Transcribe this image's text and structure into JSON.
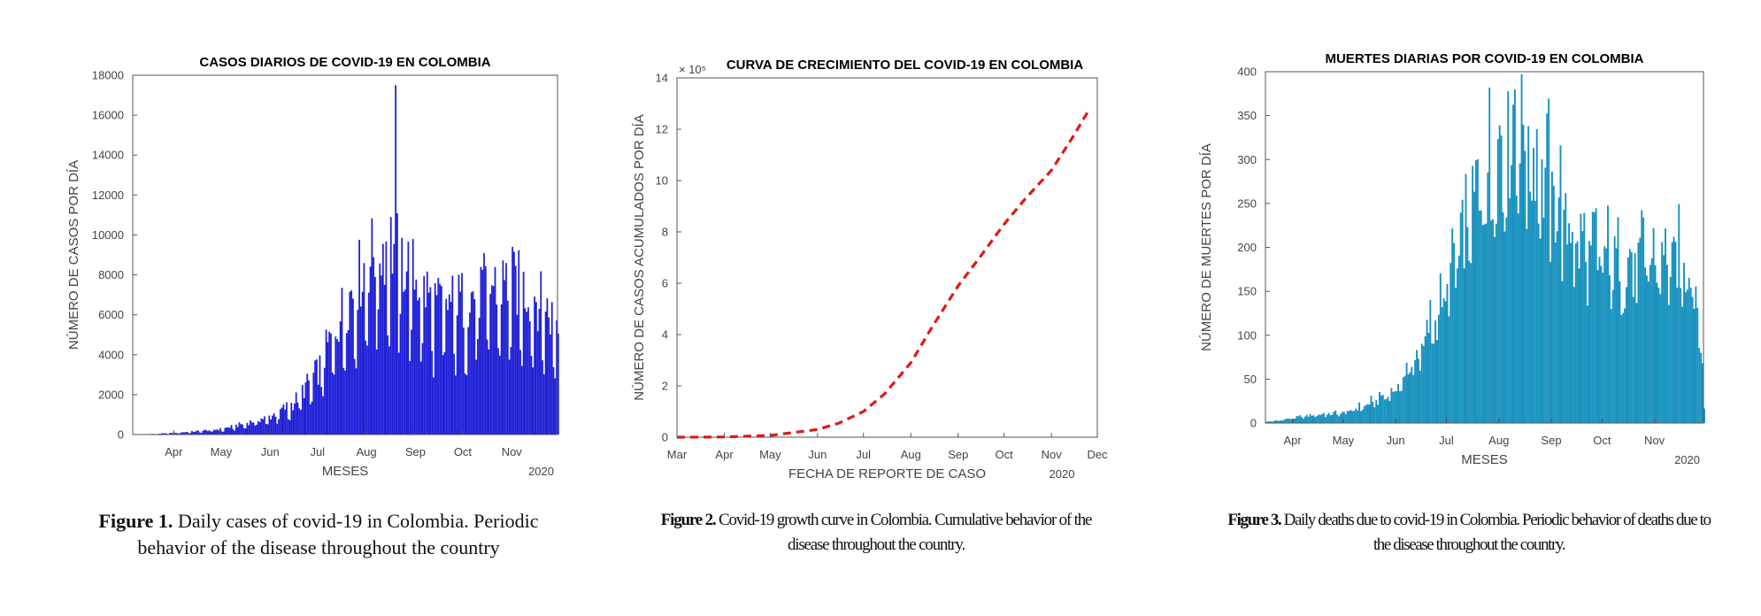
{
  "chart_data": [
    {
      "type": "bar",
      "title": "CASOS DIARIOS DE COVID-19 EN COLOMBIA",
      "xlabel": "MESES",
      "ylabel": "NÚMERO DE CASOS POR DÍA",
      "year_label": "2020",
      "x_ticks": [
        "Apr",
        "May",
        "Jun",
        "Jul",
        "Aug",
        "Sep",
        "Oct",
        "Nov"
      ],
      "y_ticks": [
        "0",
        "2000",
        "4000",
        "6000",
        "8000",
        "10000",
        "12000",
        "14000",
        "16000",
        "18000"
      ],
      "ylim": [
        0,
        18000
      ],
      "x_range": [
        "2020-03-06",
        "2020-11-30"
      ],
      "color": "#1f1fd6",
      "monthly_trend": [
        {
          "date": "2020-03-15",
          "value": 20
        },
        {
          "date": "2020-04-01",
          "value": 90
        },
        {
          "date": "2020-04-15",
          "value": 180
        },
        {
          "date": "2020-05-01",
          "value": 300
        },
        {
          "date": "2020-05-15",
          "value": 600
        },
        {
          "date": "2020-06-01",
          "value": 1000
        },
        {
          "date": "2020-06-15",
          "value": 1700
        },
        {
          "date": "2020-07-01",
          "value": 3500
        },
        {
          "date": "2020-07-15",
          "value": 6500
        },
        {
          "date": "2020-08-01",
          "value": 9500
        },
        {
          "date": "2020-08-15",
          "value": 10500
        },
        {
          "date": "2020-09-01",
          "value": 8500
        },
        {
          "date": "2020-09-15",
          "value": 7000
        },
        {
          "date": "2020-10-01",
          "value": 7300
        },
        {
          "date": "2020-10-15",
          "value": 8000
        },
        {
          "date": "2020-11-01",
          "value": 8300
        },
        {
          "date": "2020-11-15",
          "value": 7600
        },
        {
          "date": "2020-11-30",
          "value": 6000
        }
      ],
      "peak": {
        "date": "2020-08-19",
        "value": 17500
      }
    },
    {
      "type": "line",
      "title": "CURVA DE CRECIMIENTO DEL COVID-19 EN COLOMBIA",
      "xlabel": "FECHA DE REPORTE DE CASO",
      "ylabel": "NÚMERO DE CASOS ACUMULADOS POR DÍA",
      "year_label": "2020",
      "multiplier": "× 10⁵",
      "x_ticks": [
        "Mar",
        "Apr",
        "May",
        "Jun",
        "Jul",
        "Aug",
        "Sep",
        "Oct",
        "Nov",
        "Dec"
      ],
      "y_ticks": [
        "0",
        "2",
        "4",
        "6",
        "8",
        "10",
        "12",
        "14"
      ],
      "ylim": [
        0,
        14
      ],
      "x_range": [
        "2020-03-01",
        "2020-12-01"
      ],
      "color": "#e01818",
      "line_style": "dashed",
      "series": [
        {
          "date": "2020-03-01",
          "value": 0
        },
        {
          "date": "2020-04-01",
          "value": 0.01
        },
        {
          "date": "2020-05-01",
          "value": 0.07
        },
        {
          "date": "2020-06-01",
          "value": 0.3
        },
        {
          "date": "2020-06-15",
          "value": 0.55
        },
        {
          "date": "2020-07-01",
          "value": 1.0
        },
        {
          "date": "2020-07-15",
          "value": 1.7
        },
        {
          "date": "2020-08-01",
          "value": 2.9
        },
        {
          "date": "2020-08-15",
          "value": 4.3
        },
        {
          "date": "2020-09-01",
          "value": 5.9
        },
        {
          "date": "2020-09-15",
          "value": 7.0
        },
        {
          "date": "2020-10-01",
          "value": 8.3
        },
        {
          "date": "2020-10-15",
          "value": 9.3
        },
        {
          "date": "2020-11-01",
          "value": 10.4
        },
        {
          "date": "2020-11-15",
          "value": 11.7
        },
        {
          "date": "2020-11-26",
          "value": 12.8
        }
      ]
    },
    {
      "type": "bar",
      "title": "MUERTES DIARIAS POR COVID-19 EN COLOMBIA",
      "xlabel": "MESES",
      "ylabel": "NÚMERO DE MUERTES POR DÍA",
      "year_label": "2020",
      "x_ticks": [
        "Apr",
        "May",
        "Jun",
        "Jul",
        "Aug",
        "Sep",
        "Oct",
        "Nov"
      ],
      "y_ticks": [
        "0",
        "50",
        "100",
        "150",
        "200",
        "250",
        "300",
        "350",
        "400"
      ],
      "ylim": [
        0,
        400
      ],
      "x_range": [
        "2020-03-16",
        "2020-11-30"
      ],
      "color": "#1791be",
      "monthly_trend": [
        {
          "date": "2020-03-20",
          "value": 2
        },
        {
          "date": "2020-04-01",
          "value": 6
        },
        {
          "date": "2020-04-15",
          "value": 10
        },
        {
          "date": "2020-05-01",
          "value": 12
        },
        {
          "date": "2020-05-15",
          "value": 22
        },
        {
          "date": "2020-06-01",
          "value": 40
        },
        {
          "date": "2020-06-15",
          "value": 85
        },
        {
          "date": "2020-07-01",
          "value": 160
        },
        {
          "date": "2020-07-15",
          "value": 250
        },
        {
          "date": "2020-08-01",
          "value": 330
        },
        {
          "date": "2020-08-15",
          "value": 340
        },
        {
          "date": "2020-09-01",
          "value": 280
        },
        {
          "date": "2020-09-15",
          "value": 220
        },
        {
          "date": "2020-10-01",
          "value": 195
        },
        {
          "date": "2020-10-15",
          "value": 190
        },
        {
          "date": "2020-11-01",
          "value": 195
        },
        {
          "date": "2020-11-15",
          "value": 190
        },
        {
          "date": "2020-11-25",
          "value": 180
        },
        {
          "date": "2020-11-30",
          "value": 20
        }
      ],
      "peak": {
        "date": "2020-08-10",
        "value": 380
      }
    }
  ],
  "captions": [
    {
      "label": "Figure 1.",
      "text": " Daily cases of covid-19 in Colombia. Periodic behavior of the disease throughout the country"
    },
    {
      "label": "Figure 2.",
      "text": " Covid-19 growth curve in Colombia. Cumulative behavior of the disease throughout the country."
    },
    {
      "label": "Figure 3.",
      "text": " Daily deaths due to covid-19 in Colombia. Periodic behavior of deaths due to the disease throughout the country."
    }
  ]
}
